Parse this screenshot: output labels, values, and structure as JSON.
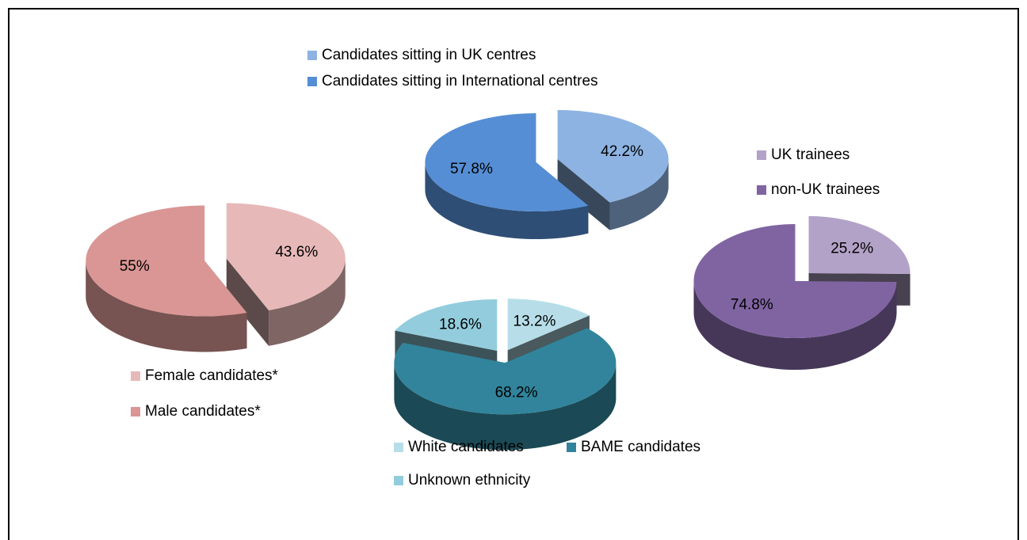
{
  "chart_data": [
    {
      "type": "pie",
      "categories": [
        "Female candidates*",
        "Male candidates*"
      ],
      "values": [
        43.6,
        55
      ],
      "value_labels": [
        "43.6%",
        "55%"
      ],
      "colors": [
        "#e6b9b8",
        "#d99694"
      ]
    },
    {
      "type": "pie",
      "categories": [
        "Candidates sitting in UK centres",
        "Candidates sitting in International centres"
      ],
      "values": [
        42.2,
        57.8
      ],
      "value_labels": [
        "42.2%",
        "57.8%"
      ],
      "colors": [
        "#8db3e2",
        "#558ed5"
      ]
    },
    {
      "type": "pie",
      "categories": [
        "UK trainees",
        "non-UK trainees"
      ],
      "values": [
        25.2,
        74.8
      ],
      "value_labels": [
        "25.2%",
        "74.8%"
      ],
      "colors": [
        "#b3a2c7",
        "#8064a2"
      ]
    },
    {
      "type": "pie",
      "categories": [
        "White candidates",
        "BAME candidates",
        "Unknown ethnicity"
      ],
      "values": [
        13.2,
        68.2,
        18.6
      ],
      "value_labels": [
        "13.2%",
        "68.2%",
        "18.6%"
      ],
      "colors": [
        "#b7dee8",
        "#31849b",
        "#93cddd"
      ]
    }
  ]
}
